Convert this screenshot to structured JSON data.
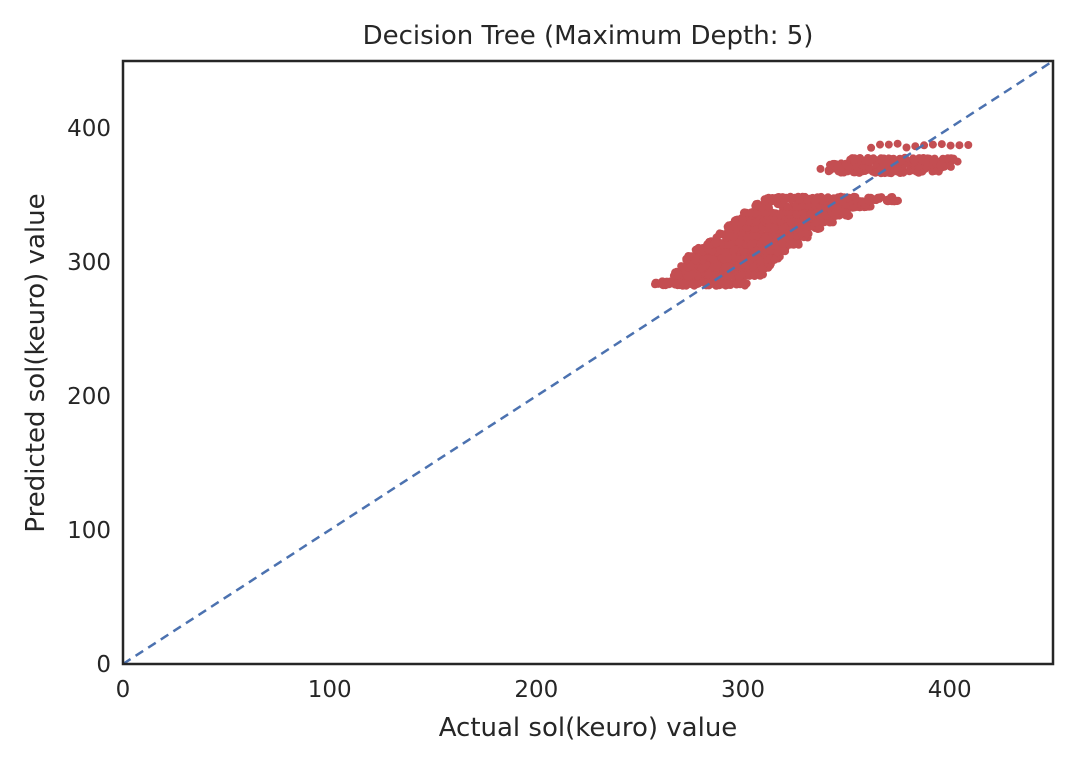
{
  "chart_data": {
    "type": "scatter",
    "title": "Decision Tree (Maximum Depth: 5)",
    "xlabel": "Actual sol(keuro) value",
    "ylabel": "Predicted sol(keuro) value",
    "xlim": [
      0,
      450
    ],
    "ylim": [
      0,
      450
    ],
    "xticks": [
      0,
      100,
      200,
      300,
      400
    ],
    "yticks": [
      0,
      100,
      200,
      300,
      400
    ],
    "grid": false,
    "reference_line": {
      "style": "dashed",
      "from": [
        0,
        0
      ],
      "to": [
        450,
        450
      ],
      "color": "#4c72b0"
    },
    "point_color": "#c44e52",
    "series": [
      {
        "prediction_levels": [
          {
            "y": 284,
            "x": [
              257,
              302
            ],
            "density": "high"
          },
          {
            "y": 291,
            "x": [
              266,
              310
            ],
            "density": "high"
          },
          {
            "y": 297,
            "x": [
              270,
              314
            ],
            "density": "high"
          },
          {
            "y": 303,
            "x": [
              272,
              318
            ],
            "density": "high"
          },
          {
            "y": 309,
            "x": [
              277,
              322
            ],
            "density": "high"
          },
          {
            "y": 314,
            "x": [
              282,
              327
            ],
            "density": "high"
          },
          {
            "y": 320,
            "x": [
              287,
              332
            ],
            "density": "high"
          },
          {
            "y": 326,
            "x": [
              292,
              338
            ],
            "density": "high"
          },
          {
            "y": 331,
            "x": [
              296,
              344
            ],
            "density": "high"
          },
          {
            "y": 336,
            "x": [
              300,
              352
            ],
            "density": "high"
          },
          {
            "y": 342,
            "x": [
              305,
              362
            ],
            "density": "high"
          },
          {
            "y": 347,
            "x": [
              310,
              375
            ],
            "density": "high"
          },
          {
            "y": 368,
            "x": [
              336,
              396
            ],
            "density": "medium"
          },
          {
            "y": 372,
            "x": [
              342,
              402
            ],
            "density": "medium"
          },
          {
            "y": 376,
            "x": [
              350,
              404
            ],
            "density": "medium"
          },
          {
            "y": 387,
            "x": [
              362,
              409
            ],
            "density": "low"
          }
        ]
      }
    ]
  }
}
